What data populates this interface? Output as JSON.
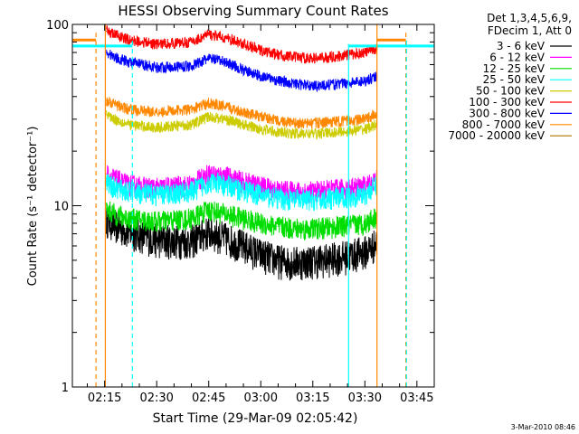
{
  "chart_data": {
    "type": "line",
    "title": "HESSI Observing Summary Count Rates",
    "xlabel": "Start Time (29-Mar-09 02:05:42)",
    "ylabel": "Count Rate (s⁻¹ detector⁻¹)",
    "yscale": "log",
    "xlim_minutes_from_0200": [
      5.7,
      110
    ],
    "ylim": [
      1,
      100
    ],
    "x_ticks": [
      {
        "label": "02:15",
        "minutes": 15
      },
      {
        "label": "02:30",
        "minutes": 30
      },
      {
        "label": "02:45",
        "minutes": 45
      },
      {
        "label": "03:00",
        "minutes": 60
      },
      {
        "label": "03:15",
        "minutes": 75
      },
      {
        "label": "03:30",
        "minutes": 90
      },
      {
        "label": "03:45",
        "minutes": 105
      }
    ],
    "y_ticks": [
      {
        "label": "1",
        "value": 1
      },
      {
        "label": "10",
        "value": 10
      },
      {
        "label": "100",
        "value": 100
      }
    ],
    "legend_header": [
      "Det 1,3,4,5,6,9,",
      "FDecim 1, Att 0"
    ],
    "legend_position": "right",
    "footer": "3-Mar-2010 08:46",
    "x_min_minutes": [
      15.5,
      18,
      22,
      30,
      40,
      45,
      50,
      55,
      60,
      65,
      70,
      75,
      80,
      85,
      90,
      93.5
    ],
    "series": [
      {
        "name": "3 - 6 keV",
        "color": "#000000",
        "values": [
          8.5,
          7.8,
          7.2,
          6.5,
          6.4,
          7.2,
          6.6,
          6.0,
          5.4,
          5.0,
          4.9,
          5.0,
          5.1,
          5.3,
          5.6,
          6.2
        ]
      },
      {
        "name": "6 - 12 keV",
        "color": "#ff00ff",
        "values": [
          15,
          14,
          13,
          12.5,
          13,
          15,
          14.5,
          13.5,
          12.8,
          12.2,
          12.0,
          12.0,
          12.2,
          12.5,
          12.8,
          14
        ]
      },
      {
        "name": "12 - 25 keV",
        "color": "#00dd00",
        "values": [
          9.5,
          9.0,
          8.5,
          8.2,
          8.5,
          9.5,
          9.0,
          8.5,
          8.0,
          7.7,
          7.5,
          7.5,
          7.6,
          7.8,
          8.0,
          8.8
        ]
      },
      {
        "name": "25 - 50 keV",
        "color": "#00ffff",
        "values": [
          13.5,
          12.5,
          12.0,
          11.5,
          12.0,
          13.5,
          13.0,
          12.2,
          11.5,
          11.0,
          10.8,
          10.8,
          11.0,
          11.2,
          11.6,
          13
        ]
      },
      {
        "name": "50 - 100 keV",
        "color": "#cccc00",
        "values": [
          32,
          30,
          28,
          27,
          28,
          31,
          30,
          28,
          26.5,
          25.5,
          25,
          25,
          25.3,
          25.8,
          26.5,
          28
        ]
      },
      {
        "name": "100 - 300 keV",
        "color": "#ff0000",
        "values": [
          92,
          88,
          82,
          78,
          80,
          88,
          84,
          78,
          72,
          68,
          66,
          65,
          66,
          68,
          70,
          74
        ]
      },
      {
        "name": "300 - 800 keV",
        "color": "#0000ff",
        "values": [
          70,
          66,
          62,
          58,
          59,
          65,
          62,
          56,
          52,
          49,
          47,
          46,
          46.5,
          47.5,
          49,
          52
        ]
      },
      {
        "name": "800 - 7000 keV",
        "color": "#ff8800",
        "values": [
          38,
          36,
          34,
          33,
          34,
          37,
          35,
          33,
          31,
          29.5,
          28.5,
          28.5,
          29,
          29.5,
          30,
          32
        ]
      },
      {
        "name": "7000 - 20000 keV",
        "color": "#aa7700",
        "values": [
          null,
          null,
          null,
          null,
          null,
          null,
          null,
          null,
          null,
          null,
          null,
          null,
          null,
          null,
          null,
          null
        ]
      }
    ],
    "vlines": [
      {
        "minutes": 12.5,
        "color": "#ff8800",
        "style": "dashed",
        "from": 1,
        "to": 90
      },
      {
        "minutes": 15.2,
        "color": "#ff8800",
        "style": "solid",
        "from": 1,
        "to": 100
      },
      {
        "minutes": 23.0,
        "color": "#00ffff",
        "style": "dashed",
        "from": 1,
        "to": 82
      },
      {
        "minutes": 85.3,
        "color": "#00ffff",
        "style": "solid",
        "from": 1,
        "to": 78
      },
      {
        "minutes": 93.5,
        "color": "#ff8800",
        "style": "solid",
        "from": 1,
        "to": 100
      },
      {
        "minutes": 101.8,
        "color": "#ff8800",
        "style": "dashed",
        "from": 1,
        "to": 90
      },
      {
        "minutes": 102.0,
        "color": "#00ffff",
        "style": "dashed",
        "from": 1,
        "to": 82
      }
    ],
    "hsegments": [
      {
        "x0": 5.7,
        "x1": 12.5,
        "y": 82,
        "color": "#ff8800"
      },
      {
        "x0": 5.7,
        "x1": 23.0,
        "y": 76,
        "color": "#00ffff"
      },
      {
        "x0": 85.3,
        "x1": 93.5,
        "y": 76,
        "color": "#00ffff"
      },
      {
        "x0": 93.5,
        "x1": 101.8,
        "y": 82,
        "color": "#ff8800"
      },
      {
        "x0": 93.5,
        "x1": 110,
        "y": 76,
        "color": "#00ffff"
      }
    ]
  }
}
